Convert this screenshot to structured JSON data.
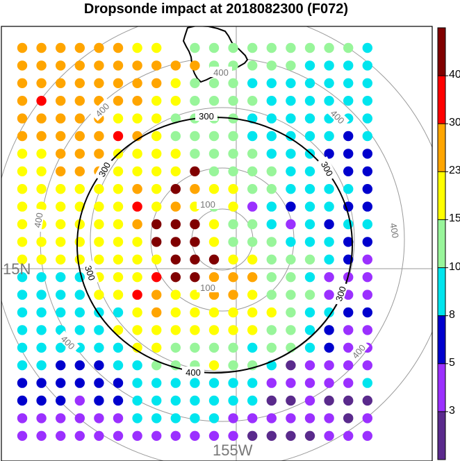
{
  "title": "Dropsonde impact at 2018082300 (F072)",
  "map": {
    "lat_label": "15N",
    "lon_label": "155W",
    "range_ring_labels": [
      "100",
      "100",
      "300",
      "300",
      "300",
      "300",
      "300",
      "400",
      "400",
      "400",
      "400",
      "400",
      "400",
      "400",
      "400"
    ],
    "contour_300_color": "#000000",
    "ring_color": "#9a9a9a"
  },
  "colorbar": {
    "tick_labels": [
      "3",
      "5",
      "8",
      "10",
      "15",
      "23",
      "30",
      "40"
    ],
    "colors": [
      "#5a2a8c",
      "#9b30ff",
      "#0000cd",
      "#00e5ee",
      "#98f59a",
      "#ffff00",
      "#ffa500",
      "#ff0000",
      "#800000"
    ]
  },
  "grid": {
    "rows": [
      "66666655_4444444443",
      "6666666666444443333",
      "6666666654443333333",
      "6766666554444333333",
      "6666655544443333333",
      "6666676544443333323",
      "5566655554444333222",
      "5566655558444433322",
      "5555556586554433332",
      "5555557565451323322",
      "5555556888544313233",
      "5555555888544433322",
      "5555555588855444321",
      "3333555788666443111",
      "3333557655665444111",
      "3333335655555543322",
      "3333355555555443211",
      "3333335544443443211",
      "3322233444544301111",
      "2222223333333111113",
      "2221223333333001000",
      "1111113333311111101",
      "1111111111110000111"
    ]
  }
}
